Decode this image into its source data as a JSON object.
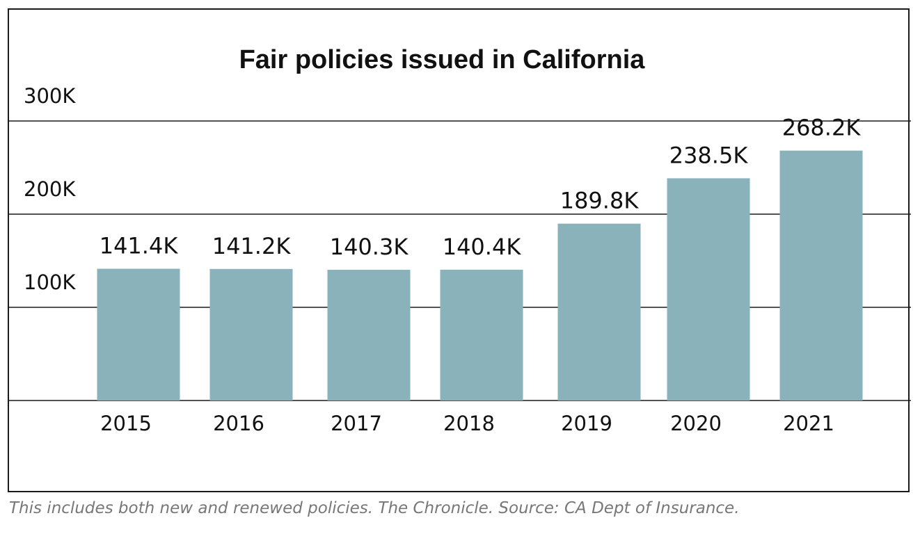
{
  "chart_data": {
    "type": "bar",
    "title": "Fair policies issued in California",
    "categories": [
      "2015",
      "2016",
      "2017",
      "2018",
      "2019",
      "2020",
      "2021"
    ],
    "values": [
      141.4,
      141.2,
      140.3,
      140.4,
      189.8,
      238.5,
      268.2
    ],
    "value_labels": [
      "141.4K",
      "141.2K",
      "140.3K",
      "140.4K",
      "189.8K",
      "238.5K",
      "268.2K"
    ],
    "ylim": [
      0,
      300
    ],
    "y_ticks": [
      100,
      200,
      300
    ],
    "y_tick_labels": [
      "100K",
      "200K",
      "300K"
    ],
    "xlabel": "",
    "ylabel": "",
    "grid": true,
    "bar_color": "#8ab2bb"
  },
  "caption": "This includes both new and renewed policies. The Chronicle. Source: CA Dept of Insurance."
}
